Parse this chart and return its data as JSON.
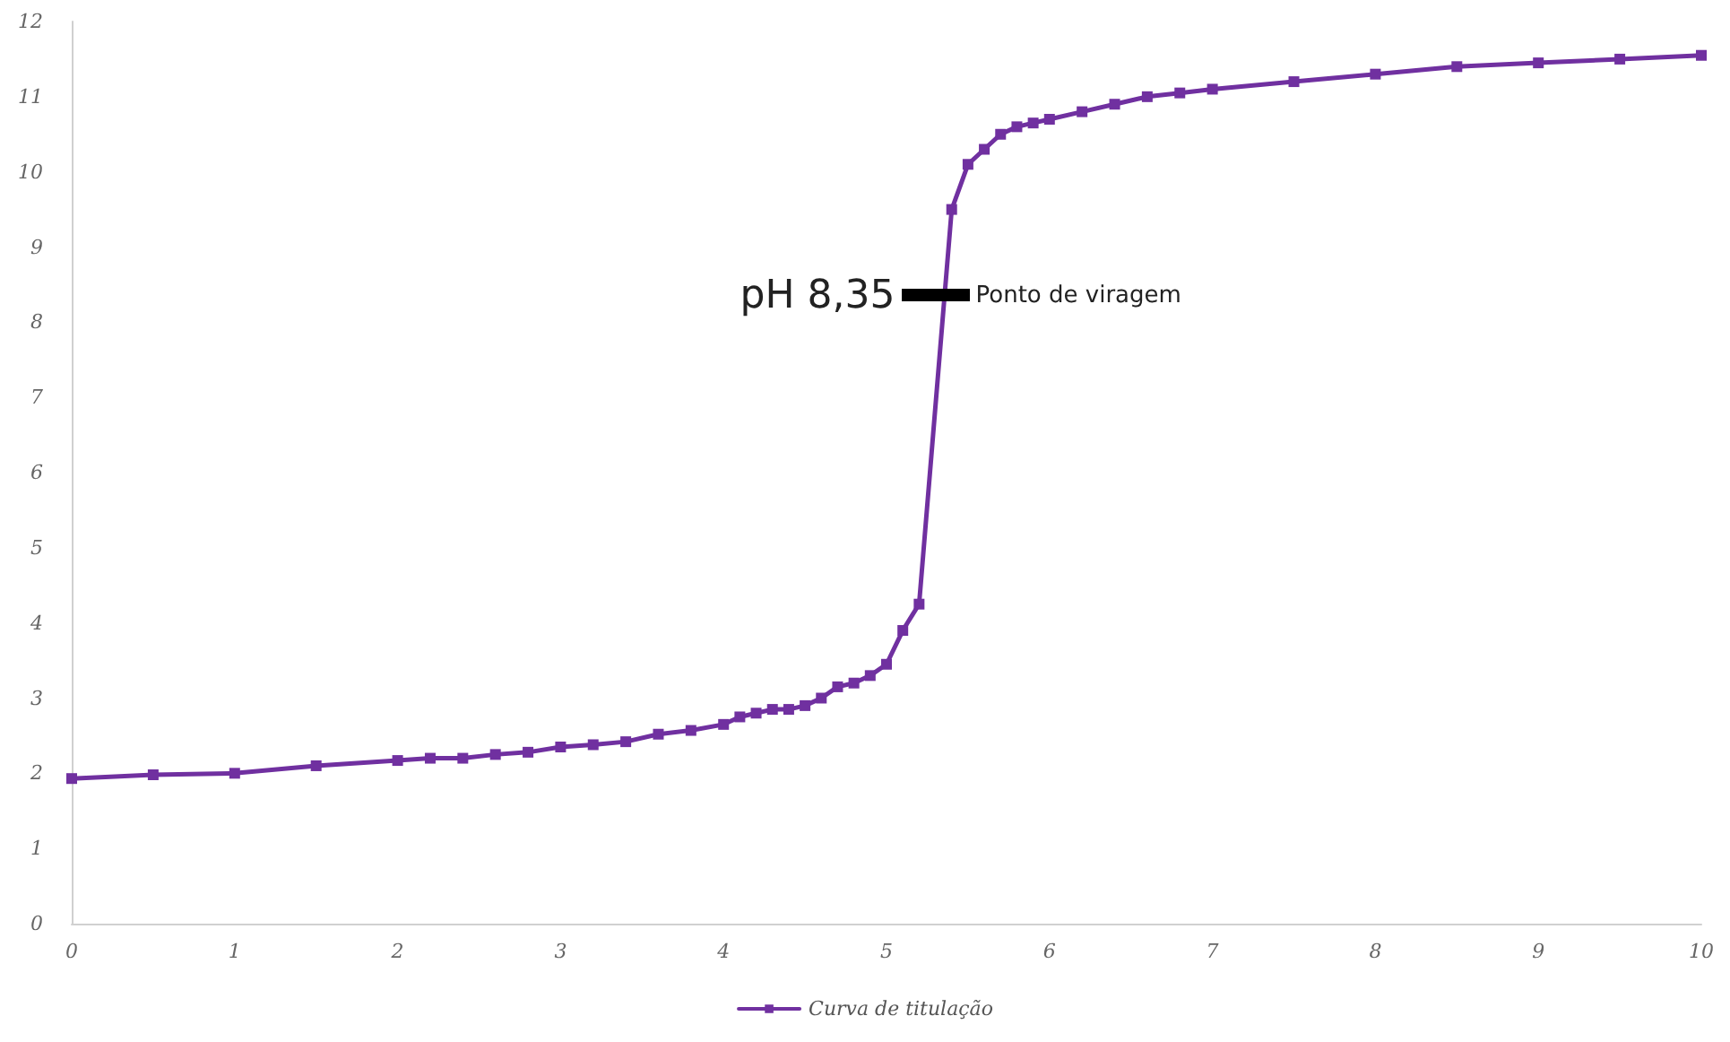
{
  "chart_data": {
    "type": "line",
    "marker": "square",
    "line_style": "solid",
    "legend": "bottom",
    "grid": false,
    "x": [
      0,
      0.5,
      1,
      1.5,
      2,
      2.2,
      2.4,
      2.6,
      2.8,
      3,
      3.2,
      3.4,
      3.6,
      3.8,
      4,
      4.1,
      4.2,
      4.3,
      4.4,
      4.5,
      4.6,
      4.7,
      4.8,
      4.9,
      5,
      5.1,
      5.2,
      5.4,
      5.5,
      5.6,
      5.7,
      5.8,
      5.9,
      6,
      6.2,
      6.4,
      6.6,
      6.8,
      7,
      7.5,
      8,
      8.5,
      9,
      9.5,
      10
    ],
    "series": [
      {
        "name": "Curva de titulação",
        "color": "#7030a0",
        "values": [
          1.93,
          1.98,
          2,
          2.1,
          2.17,
          2.2,
          2.2,
          2.25,
          2.28,
          2.35,
          2.38,
          2.42,
          2.52,
          2.57,
          2.65,
          2.75,
          2.8,
          2.85,
          2.85,
          2.9,
          3,
          3.15,
          3.2,
          3.3,
          3.45,
          3.9,
          4.25,
          9.5,
          10.1,
          10.3,
          10.5,
          10.6,
          10.65,
          10.7,
          10.8,
          10.9,
          11,
          11.05,
          11.1,
          11.2,
          11.3,
          11.4,
          11.45,
          11.5,
          11.55
        ]
      }
    ],
    "xlim": [
      0,
      10
    ],
    "xticks": [
      0,
      1,
      2,
      3,
      4,
      5,
      6,
      7,
      8,
      9,
      10
    ],
    "ylim": [
      0,
      12
    ],
    "yticks": [
      0,
      1,
      2,
      3,
      4,
      5,
      6,
      7,
      8,
      9,
      10,
      11,
      12
    ],
    "annotations": [
      {
        "text": "pH 8,35",
        "x": 5.3,
        "y": 8.35
      },
      {
        "text": "Ponto de viragem",
        "x": 5.3,
        "y": 8.35
      }
    ]
  }
}
